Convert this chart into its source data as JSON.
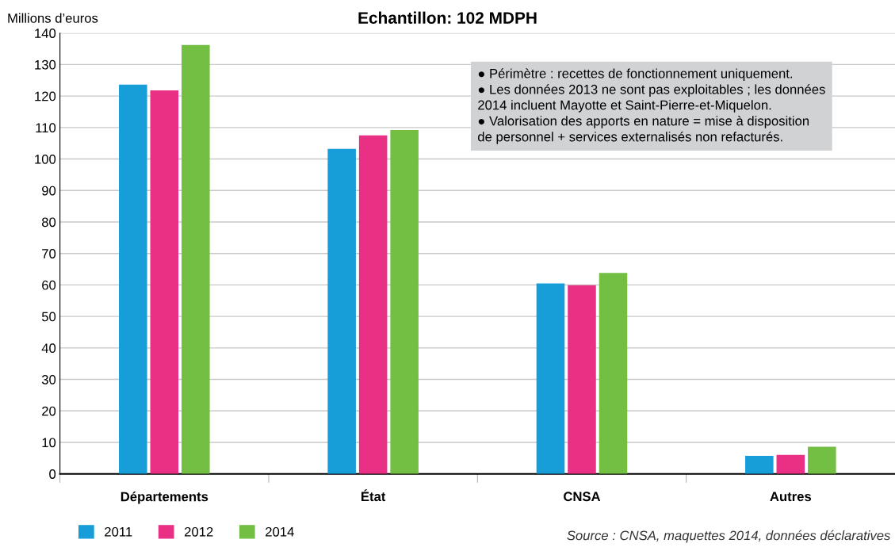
{
  "chart_data": {
    "type": "bar",
    "title": "Echantillon: 102 MDPH",
    "ylabel": "Millions d’euros",
    "categories": [
      "Départements",
      "État",
      "CNSA",
      "Autres"
    ],
    "series": [
      {
        "name": "2011",
        "color": "#179dd8",
        "values": [
          123.6,
          103.2,
          60.5,
          5.7
        ]
      },
      {
        "name": "2012",
        "color": "#e93085",
        "values": [
          121.8,
          107.5,
          59.9,
          6.0
        ]
      },
      {
        "name": "2014",
        "color": "#72bf44",
        "values": [
          136.2,
          109.2,
          63.8,
          8.6
        ]
      }
    ],
    "ylim": [
      0,
      140
    ],
    "yticks": [
      0,
      10,
      20,
      30,
      40,
      50,
      60,
      70,
      80,
      90,
      100,
      110,
      120,
      130,
      140
    ],
    "grid": "y",
    "legend": "bottom left",
    "annotations": [
      "● Périmètre : recettes de fonctionnement uniquement.\n● Les données 2013 ne sont pas exploitables ; les données\n2014 incluent Mayotte et Saint-Pierre-et-Miquelon.\n● Valorisation des apports en nature = mise à disposition\nde personnel + services externalisés non refacturés.",
      "Source : CNSA, maquettes 2014, données déclaratives"
    ]
  }
}
